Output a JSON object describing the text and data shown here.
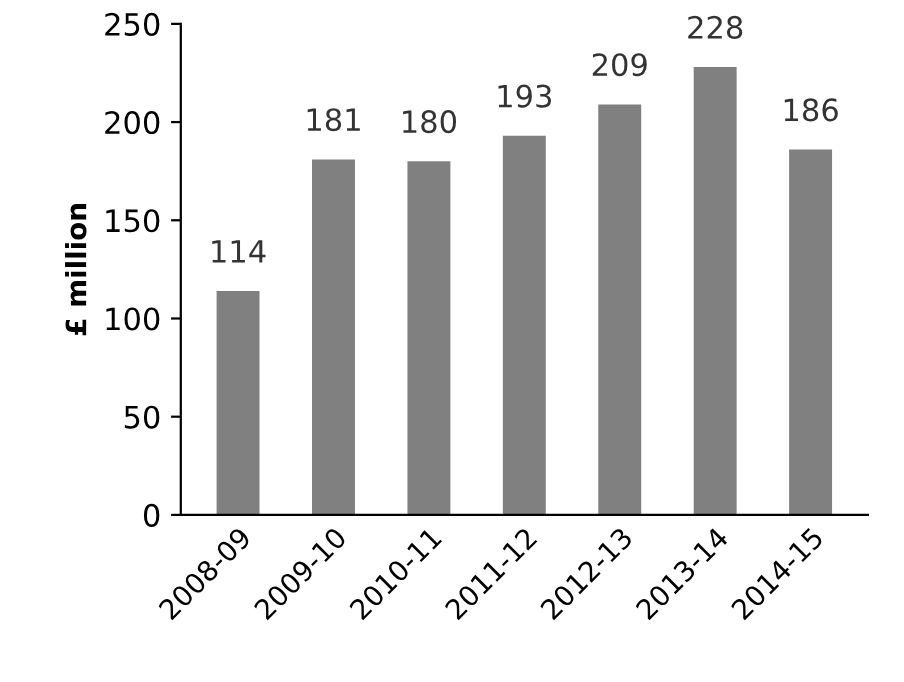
{
  "chart_data": {
    "type": "bar",
    "ylabel": "£ million",
    "categories": [
      "2008-09",
      "2009-10",
      "2010-11",
      "2011-12",
      "2012-13",
      "2013-14",
      "2014-15"
    ],
    "values": [
      114,
      181,
      180,
      193,
      209,
      228,
      186
    ],
    "color": "#808080",
    "ylim": [
      0,
      250
    ],
    "yticks": [
      0,
      50,
      100,
      150,
      200,
      250
    ],
    "grid": false,
    "data_labels": true
  }
}
